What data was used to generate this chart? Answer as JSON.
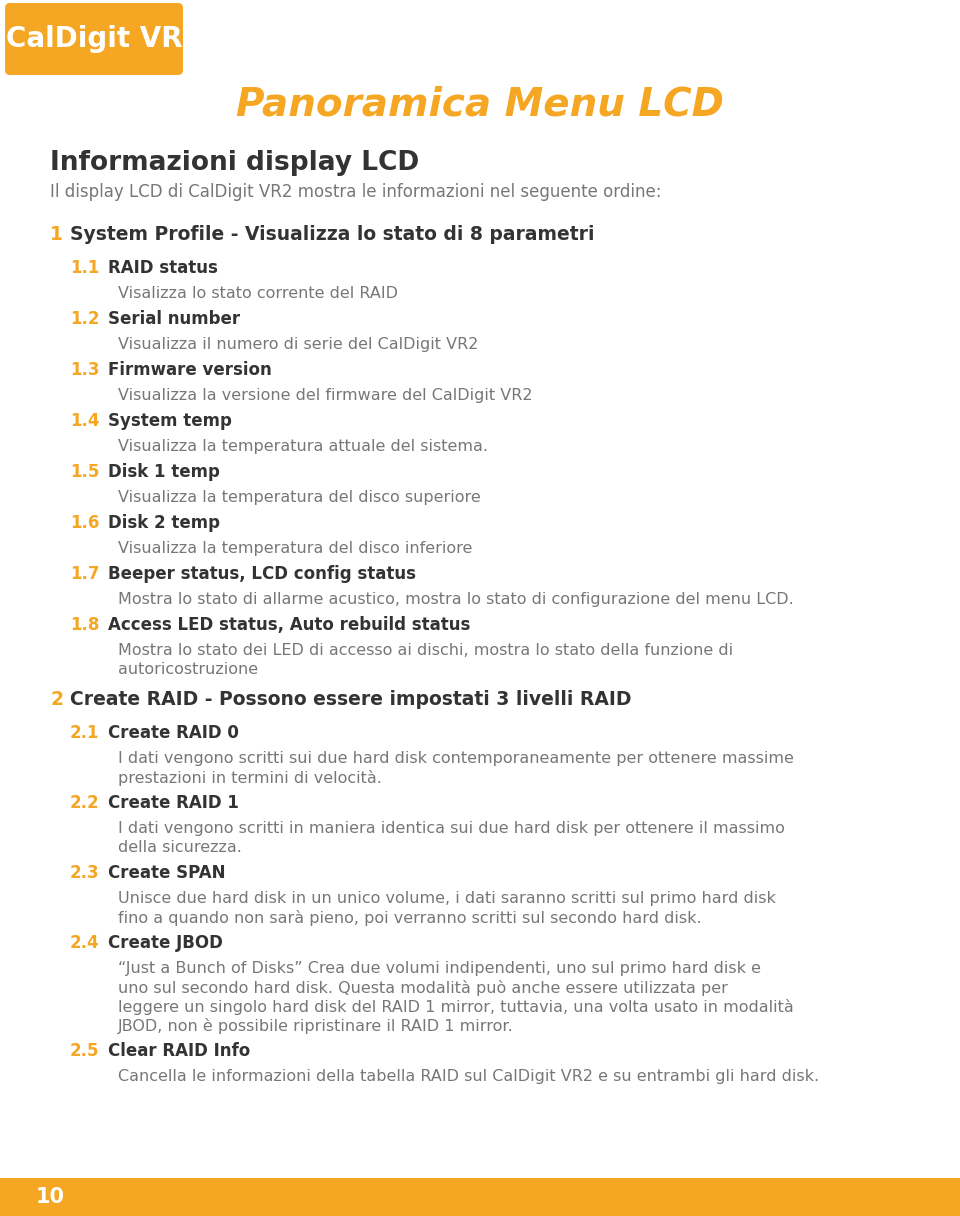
{
  "title": "Panoramica Menu LCD",
  "title_color": "#F5A623",
  "bg_color": "#FFFFFF",
  "logo_bg_color": "#F5A623",
  "logo_text": "CalDigit VR",
  "logo_text_color": "#FFFFFF",
  "section_heading": "Informazioni display LCD",
  "dark": "#333333",
  "gray": "#777777",
  "orange": "#F5A623",
  "footer_bg": "#F5A623",
  "footer_text": "10",
  "footer_text_color": "#FFFFFF",
  "section_intro": "Il display LCD di CalDigit VR2 mostra le informazioni nel seguente ordine:",
  "content": [
    {
      "type": "main_item",
      "num": "1",
      "text": "System Profile - Visualizza lo stato di 8 parametri"
    },
    {
      "type": "sub_heading",
      "num": "1.1",
      "text": "RAID status"
    },
    {
      "type": "sub_desc",
      "text": "Visalizza lo stato corrente del RAID"
    },
    {
      "type": "sub_heading",
      "num": "1.2",
      "text": "Serial number"
    },
    {
      "type": "sub_desc",
      "text": "Visualizza il numero di serie del CalDigit VR2"
    },
    {
      "type": "sub_heading",
      "num": "1.3",
      "text": "Firmware version"
    },
    {
      "type": "sub_desc",
      "text": "Visualizza la versione del firmware del CalDigit VR2"
    },
    {
      "type": "sub_heading",
      "num": "1.4",
      "text": "System temp"
    },
    {
      "type": "sub_desc",
      "text": "Visualizza la temperatura attuale del sistema."
    },
    {
      "type": "sub_heading",
      "num": "1.5",
      "text": "Disk 1 temp"
    },
    {
      "type": "sub_desc",
      "text": "Visualizza la temperatura del disco superiore"
    },
    {
      "type": "sub_heading",
      "num": "1.6",
      "text": "Disk 2 temp"
    },
    {
      "type": "sub_desc",
      "text": "Visualizza la temperatura del disco inferiore"
    },
    {
      "type": "sub_heading",
      "num": "1.7",
      "text": "Beeper status, LCD config status"
    },
    {
      "type": "sub_desc",
      "text": "Mostra lo stato di allarme acustico, mostra lo stato di configurazione del menu LCD."
    },
    {
      "type": "sub_heading",
      "num": "1.8",
      "text": "Access LED status, Auto rebuild status"
    },
    {
      "type": "sub_desc",
      "text": "Mostra lo stato dei LED di accesso ai dischi, mostra lo stato della funzione di\nautoricostruzione"
    },
    {
      "type": "main_item",
      "num": "2",
      "text": "Create RAID - Possono essere impostati 3 livelli RAID"
    },
    {
      "type": "sub_heading",
      "num": "2.1",
      "text": "Create RAID 0"
    },
    {
      "type": "sub_desc",
      "text": "I dati vengono scritti sui due hard disk contemporaneamente per ottenere massime\nprestazioni in termini di velocità."
    },
    {
      "type": "sub_heading",
      "num": "2.2",
      "text": "Create RAID 1"
    },
    {
      "type": "sub_desc",
      "text": "I dati vengono scritti in maniera identica sui due hard disk per ottenere il massimo\ndella sicurezza."
    },
    {
      "type": "sub_heading",
      "num": "2.3",
      "text": "Create SPAN"
    },
    {
      "type": "sub_desc",
      "text": "Unisce due hard disk in un unico volume, i dati saranno scritti sul primo hard disk\nfino a quando non sarà pieno, poi verranno scritti sul secondo hard disk."
    },
    {
      "type": "sub_heading",
      "num": "2.4",
      "text": "Create JBOD"
    },
    {
      "type": "sub_desc",
      "text": "“Just a Bunch of Disks” Crea due volumi indipendenti, uno sul primo hard disk e\nuno sul secondo hard disk. Questa modalità può anche essere utilizzata per\nleggere un singolo hard disk del RAID 1 mirror, tuttavia, una volta usato in modalità\nJBOD, non è possibile ripristinare il RAID 1 mirror."
    },
    {
      "type": "sub_heading",
      "num": "2.5",
      "text": "Clear RAID Info"
    },
    {
      "type": "sub_desc",
      "text": "Cancella le informazioni della tabella RAID sul CalDigit VR2 e su entrambi gli hard disk."
    }
  ]
}
